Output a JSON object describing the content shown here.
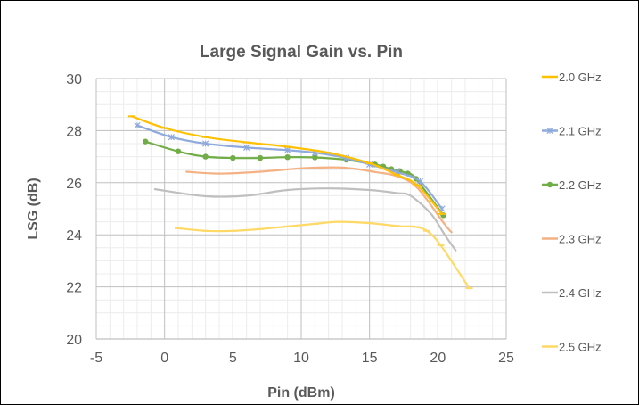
{
  "chart_data": {
    "type": "line",
    "title": "Large Signal Gain vs. Pin",
    "xlabel": "Pin (dBm)",
    "ylabel": "LSG (dB)",
    "xlim": [
      -5,
      25
    ],
    "ylim": [
      20,
      30
    ],
    "x_ticks": [
      "-5",
      "0",
      "5",
      "10",
      "15",
      "20",
      "25"
    ],
    "y_ticks": [
      "20",
      "22",
      "24",
      "26",
      "28",
      "30"
    ],
    "grid": true,
    "legend_position": "right",
    "series": [
      {
        "name": "2.0 GHz",
        "color": "#FFC000",
        "marker": "dash",
        "points": [
          [
            -2.4,
            28.55
          ],
          [
            0,
            28.1
          ],
          [
            3,
            27.75
          ],
          [
            6,
            27.55
          ],
          [
            9,
            27.38
          ],
          [
            12,
            27.15
          ],
          [
            15,
            26.75
          ],
          [
            17,
            26.3
          ],
          [
            18.5,
            25.9
          ],
          [
            20.3,
            24.8
          ]
        ]
      },
      {
        "name": "2.1 GHz",
        "color": "#8FAADC",
        "marker": "star",
        "points": [
          [
            -2,
            28.2
          ],
          [
            0.5,
            27.75
          ],
          [
            3,
            27.5
          ],
          [
            6,
            27.35
          ],
          [
            9,
            27.25
          ],
          [
            11,
            27.15
          ],
          [
            13.3,
            26.95
          ],
          [
            15,
            26.7
          ],
          [
            17,
            26.4
          ],
          [
            18.7,
            26.05
          ],
          [
            20.3,
            25.0
          ]
        ]
      },
      {
        "name": "2.2 GHz",
        "color": "#70AD47",
        "marker": "circle",
        "points": [
          [
            -1.4,
            27.58
          ],
          [
            1,
            27.2
          ],
          [
            3,
            27.0
          ],
          [
            5,
            26.95
          ],
          [
            7,
            26.95
          ],
          [
            9,
            26.98
          ],
          [
            11,
            26.97
          ],
          [
            13.3,
            26.88
          ],
          [
            15.4,
            26.7
          ],
          [
            16,
            26.62
          ],
          [
            16.6,
            26.52
          ],
          [
            17.2,
            26.45
          ],
          [
            17.8,
            26.35
          ],
          [
            18.4,
            26.15
          ],
          [
            20.4,
            24.75
          ]
        ]
      },
      {
        "name": "2.3 GHz",
        "color": "#F4B183",
        "marker": "none",
        "points": [
          [
            1.6,
            26.42
          ],
          [
            4,
            26.35
          ],
          [
            7,
            26.42
          ],
          [
            10,
            26.55
          ],
          [
            13,
            26.58
          ],
          [
            15.5,
            26.4
          ],
          [
            17,
            26.25
          ],
          [
            18.5,
            25.8
          ],
          [
            20.5,
            24.4
          ],
          [
            21,
            24.1
          ]
        ]
      },
      {
        "name": "2.4 GHz",
        "color": "#BFBFBF",
        "marker": "none",
        "points": [
          [
            -0.7,
            25.75
          ],
          [
            3,
            25.48
          ],
          [
            6,
            25.5
          ],
          [
            9,
            25.72
          ],
          [
            12,
            25.78
          ],
          [
            15,
            25.72
          ],
          [
            17,
            25.6
          ],
          [
            18,
            25.5
          ],
          [
            19.5,
            24.8
          ],
          [
            20.5,
            24.0
          ],
          [
            21.3,
            23.4
          ]
        ]
      },
      {
        "name": "2.5 GHz",
        "color": "#FFD966",
        "marker": "dash",
        "points": [
          [
            1,
            24.25
          ],
          [
            3,
            24.15
          ],
          [
            5,
            24.15
          ],
          [
            7,
            24.22
          ],
          [
            9,
            24.32
          ],
          [
            11,
            24.42
          ],
          [
            12.7,
            24.5
          ],
          [
            15,
            24.45
          ],
          [
            16.8,
            24.35
          ],
          [
            17.4,
            24.32
          ],
          [
            17.9,
            24.32
          ],
          [
            18.4,
            24.3
          ],
          [
            19.2,
            24.15
          ],
          [
            20.2,
            23.6
          ],
          [
            22.3,
            21.95
          ]
        ]
      }
    ]
  }
}
